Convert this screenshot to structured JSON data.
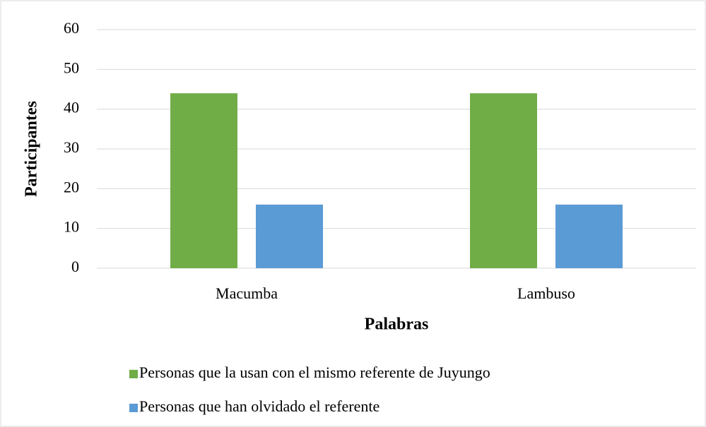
{
  "chart_data": {
    "type": "bar",
    "x_label": "Palabras",
    "y_label": "Participantes",
    "categories": [
      "Macumba",
      "Lambuso"
    ],
    "series": [
      {
        "name": "Personas que la usan con el mismo referente de Juyungo",
        "color": "#70ad47",
        "values": [
          44,
          44
        ]
      },
      {
        "name": "Personas que han olvidado el referente",
        "color": "#5b9bd5",
        "values": [
          16,
          16
        ]
      }
    ],
    "ylim": [
      0,
      60
    ],
    "yticks": [
      0,
      10,
      20,
      30,
      40,
      50,
      60
    ],
    "grid": true,
    "legend": "bottom"
  }
}
